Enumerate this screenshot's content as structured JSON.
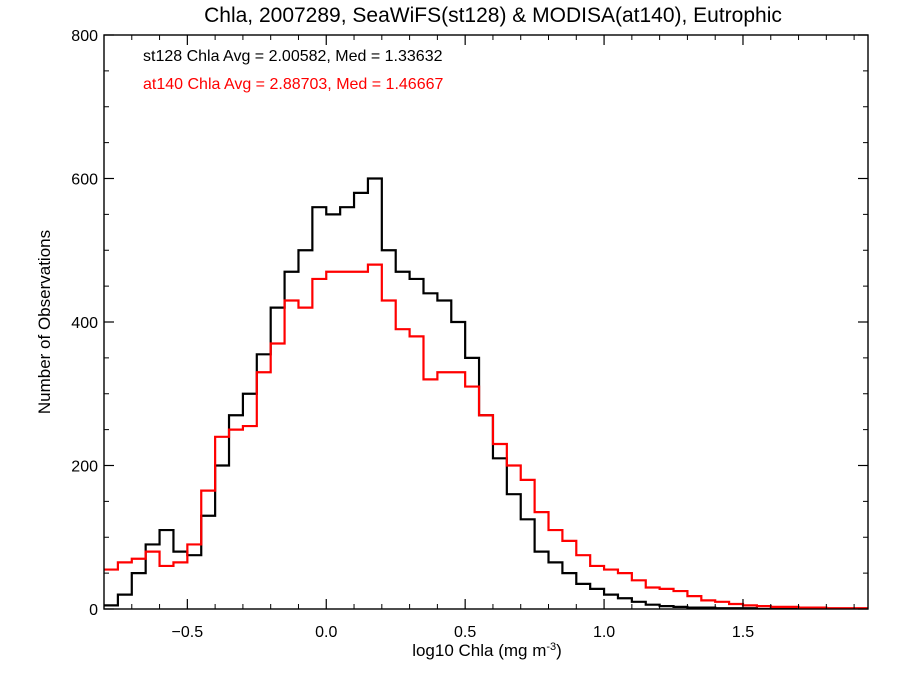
{
  "chart_data": {
    "type": "line",
    "title": "Chla, 2007289, SeaWiFS(st128) & MODISA(at140), Eutrophic",
    "xlabel": "log10 Chla (mg m",
    "xlabel_sup": "-3",
    "xlabel_close": ")",
    "ylabel": "Number of Observations",
    "xlim": [
      -0.8,
      1.95
    ],
    "ylim": [
      0,
      800
    ],
    "x_ticks": [
      -0.5,
      0.0,
      0.5,
      1.0,
      1.5
    ],
    "x_tick_labels": [
      "−0.5",
      "0.0",
      "0.5",
      "1.0",
      "1.5"
    ],
    "y_ticks": [
      0,
      200,
      400,
      600,
      800
    ],
    "y_tick_labels": [
      "0",
      "200",
      "400",
      "600",
      "800"
    ],
    "grid": false,
    "step": "histogram",
    "annotations": [
      {
        "text": "st128 Chla Avg = 2.00582, Med = 1.33632",
        "color": "#000000"
      },
      {
        "text": "at140 Chla Avg = 2.88703, Med = 1.46667",
        "color": "#ff0000"
      }
    ],
    "x": [
      -0.8,
      -0.75,
      -0.7,
      -0.65,
      -0.6,
      -0.55,
      -0.5,
      -0.45,
      -0.4,
      -0.35,
      -0.3,
      -0.25,
      -0.2,
      -0.15,
      -0.1,
      -0.05,
      0.0,
      0.05,
      0.1,
      0.15,
      0.2,
      0.25,
      0.3,
      0.35,
      0.4,
      0.45,
      0.5,
      0.55,
      0.6,
      0.65,
      0.7,
      0.75,
      0.8,
      0.85,
      0.9,
      0.95,
      1.0,
      1.05,
      1.1,
      1.15,
      1.2,
      1.25,
      1.3,
      1.35,
      1.4,
      1.45,
      1.5,
      1.55,
      1.6,
      1.65,
      1.7,
      1.75,
      1.8,
      1.85,
      1.9,
      1.95
    ],
    "series": [
      {
        "name": "st128",
        "color": "#000000",
        "values": [
          5,
          20,
          50,
          90,
          110,
          80,
          75,
          130,
          200,
          270,
          300,
          355,
          420,
          470,
          500,
          560,
          550,
          560,
          580,
          600,
          500,
          470,
          460,
          440,
          430,
          400,
          350,
          270,
          210,
          160,
          125,
          80,
          65,
          50,
          35,
          28,
          20,
          15,
          10,
          6,
          4,
          3,
          2,
          2,
          1,
          1,
          1,
          0,
          0,
          0,
          0,
          0,
          0,
          0,
          0,
          0
        ]
      },
      {
        "name": "at140",
        "color": "#ff0000",
        "values": [
          55,
          65,
          70,
          80,
          60,
          65,
          90,
          165,
          240,
          250,
          255,
          330,
          370,
          430,
          420,
          460,
          470,
          470,
          470,
          480,
          430,
          390,
          380,
          320,
          330,
          330,
          310,
          270,
          230,
          200,
          180,
          135,
          110,
          95,
          75,
          60,
          55,
          50,
          40,
          30,
          28,
          25,
          18,
          12,
          10,
          7,
          5,
          4,
          3,
          3,
          2,
          2,
          1,
          1,
          1,
          0
        ]
      }
    ]
  }
}
